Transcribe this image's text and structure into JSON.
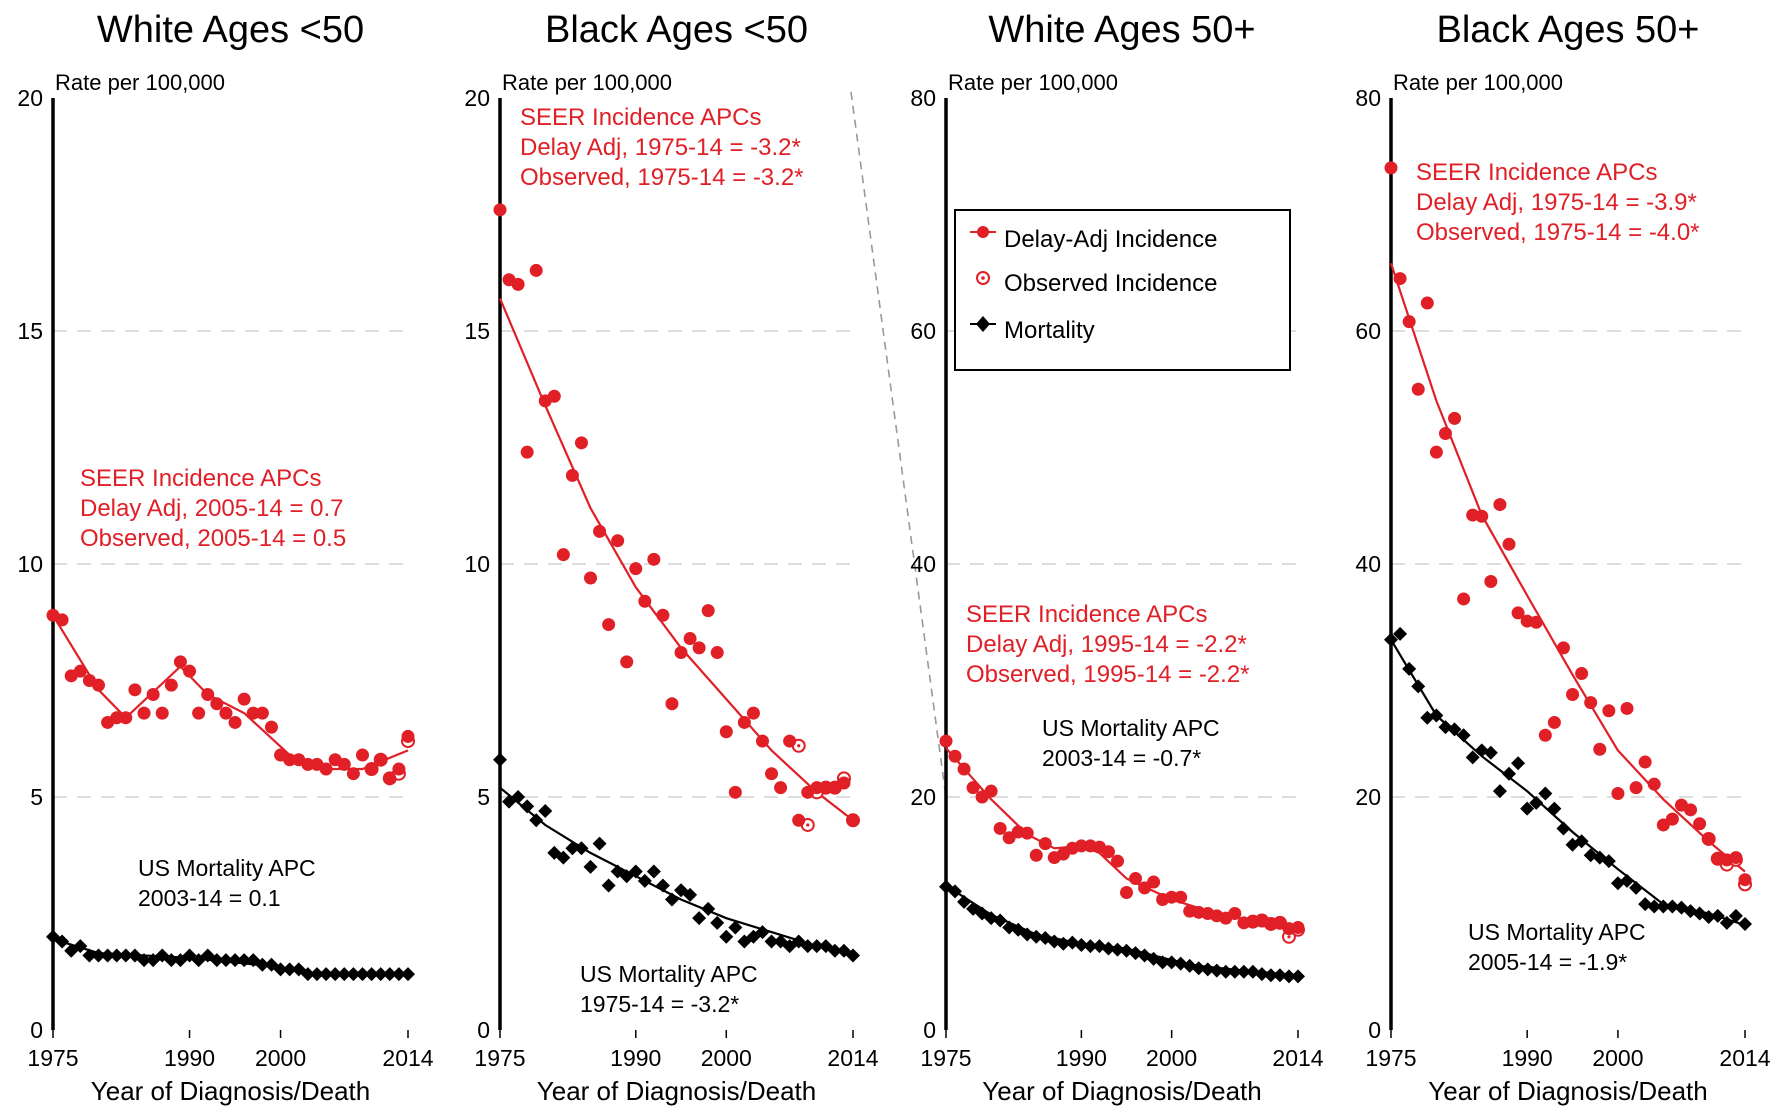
{
  "colors": {
    "incidence": "#e01f26",
    "mortality": "#000000",
    "grid": "#dddddd",
    "connector": "#999999"
  },
  "legend": {
    "delay": "Delay-Adj Incidence",
    "observed": "Observed Incidence",
    "mortality": "Mortality"
  },
  "xlabel": "Year of Diagnosis/Death",
  "ylabel": "Rate per 100,000",
  "chart_data": [
    {
      "type": "scatter",
      "title": "White Ages <50",
      "ylim": [
        0,
        20
      ],
      "yticks": [
        "0",
        "5",
        "10",
        "15",
        "20"
      ],
      "xticks": [
        "1975",
        "1990",
        "2000",
        "2014"
      ],
      "grid": true,
      "series": [
        {
          "name": "Delay-Adj Incidence",
          "x": [
            1975,
            1976,
            1977,
            1978,
            1979,
            1980,
            1981,
            1982,
            1983,
            1984,
            1985,
            1986,
            1987,
            1988,
            1989,
            1990,
            1991,
            1992,
            1993,
            1994,
            1995,
            1996,
            1997,
            1998,
            1999,
            2000,
            2001,
            2002,
            2003,
            2004,
            2005,
            2006,
            2007,
            2008,
            2009,
            2010,
            2011,
            2012,
            2013,
            2014
          ],
          "y": [
            8.9,
            8.8,
            7.6,
            7.7,
            7.5,
            7.4,
            6.6,
            6.7,
            6.7,
            7.3,
            6.8,
            7.2,
            6.8,
            7.4,
            7.9,
            7.7,
            6.8,
            7.2,
            7.0,
            6.8,
            6.6,
            7.1,
            6.8,
            6.8,
            6.5,
            5.9,
            5.8,
            5.8,
            5.7,
            5.7,
            5.6,
            5.8,
            5.7,
            5.5,
            5.9,
            5.6,
            5.8,
            5.4,
            5.6,
            6.3
          ]
        },
        {
          "name": "Observed Incidence",
          "x": [
            2010,
            2011,
            2012,
            2013,
            2014
          ],
          "y": [
            5.6,
            5.8,
            5.4,
            5.5,
            6.2
          ]
        },
        {
          "name": "Delay-Adj Incidence trend",
          "x": [
            1975,
            1980,
            1983,
            1989,
            1992,
            1996,
            2001,
            2005,
            2009,
            2014
          ],
          "y": [
            8.9,
            7.3,
            6.7,
            7.8,
            7.2,
            6.8,
            5.9,
            5.6,
            5.6,
            6.0
          ]
        },
        {
          "name": "Mortality",
          "x": [
            1975,
            1976,
            1977,
            1978,
            1979,
            1980,
            1981,
            1982,
            1983,
            1984,
            1985,
            1986,
            1987,
            1988,
            1989,
            1990,
            1991,
            1992,
            1993,
            1994,
            1995,
            1996,
            1997,
            1998,
            1999,
            2000,
            2001,
            2002,
            2003,
            2004,
            2005,
            2006,
            2007,
            2008,
            2009,
            2010,
            2011,
            2012,
            2013,
            2014
          ],
          "y": [
            2.0,
            1.9,
            1.7,
            1.8,
            1.6,
            1.6,
            1.6,
            1.6,
            1.6,
            1.6,
            1.5,
            1.5,
            1.6,
            1.5,
            1.5,
            1.6,
            1.5,
            1.6,
            1.5,
            1.5,
            1.5,
            1.5,
            1.5,
            1.4,
            1.4,
            1.3,
            1.3,
            1.3,
            1.2,
            1.2,
            1.2,
            1.2,
            1.2,
            1.2,
            1.2,
            1.2,
            1.2,
            1.2,
            1.2,
            1.2
          ]
        },
        {
          "name": "Mortality trend",
          "x": [
            1975,
            1980,
            1990,
            2000,
            2003,
            2014
          ],
          "y": [
            1.95,
            1.65,
            1.55,
            1.35,
            1.2,
            1.2
          ]
        }
      ],
      "annotations": {
        "incidence": [
          "SEER Incidence APCs",
          "Delay Adj, 2005-14 = 0.7",
          "Observed, 2005-14 = 0.5"
        ],
        "mortality": [
          "US Mortality APC",
          "2003-14 = 0.1"
        ]
      }
    },
    {
      "type": "scatter",
      "title": "Black Ages <50",
      "ylim": [
        0,
        20
      ],
      "yticks": [
        "0",
        "5",
        "10",
        "15",
        "20"
      ],
      "xticks": [
        "1975",
        "1990",
        "2000",
        "2014"
      ],
      "grid": true,
      "series": [
        {
          "name": "Delay-Adj Incidence",
          "x": [
            1975,
            1976,
            1977,
            1978,
            1979,
            1980,
            1981,
            1982,
            1983,
            1984,
            1985,
            1986,
            1987,
            1988,
            1989,
            1990,
            1991,
            1992,
            1993,
            1994,
            1995,
            1996,
            1997,
            1998,
            1999,
            2000,
            2001,
            2002,
            2003,
            2004,
            2005,
            2006,
            2007,
            2008,
            2009,
            2010,
            2011,
            2012,
            2013,
            2014
          ],
          "y": [
            17.6,
            16.1,
            16.0,
            12.4,
            16.3,
            13.5,
            13.6,
            10.2,
            11.9,
            12.6,
            9.7,
            10.7,
            8.7,
            10.5,
            7.9,
            9.9,
            9.2,
            10.1,
            8.9,
            7.0,
            8.1,
            8.4,
            8.2,
            9.0,
            8.1,
            6.4,
            5.1,
            6.6,
            6.8,
            6.2,
            5.5,
            5.2,
            6.2,
            4.5,
            5.1,
            5.2,
            5.2,
            5.2,
            5.3,
            4.5
          ]
        },
        {
          "name": "Observed Incidence",
          "x": [
            2008,
            2009,
            2010,
            2011,
            2012,
            2013,
            2014
          ],
          "y": [
            6.1,
            4.4,
            5.1,
            5.2,
            5.2,
            5.4,
            4.5
          ]
        },
        {
          "name": "Delay-Adj Incidence trend",
          "x": [
            1975,
            1980,
            1985,
            1990,
            1995,
            2000,
            2005,
            2010,
            2014
          ],
          "y": [
            15.7,
            13.4,
            11.2,
            9.5,
            8.2,
            7.1,
            6.0,
            5.1,
            4.5
          ]
        },
        {
          "name": "Mortality",
          "x": [
            1975,
            1976,
            1977,
            1978,
            1979,
            1980,
            1981,
            1982,
            1983,
            1984,
            1985,
            1986,
            1987,
            1988,
            1989,
            1990,
            1991,
            1992,
            1993,
            1994,
            1995,
            1996,
            1997,
            1998,
            1999,
            2000,
            2001,
            2002,
            2003,
            2004,
            2005,
            2006,
            2007,
            2008,
            2009,
            2010,
            2011,
            2012,
            2013,
            2014
          ],
          "y": [
            5.8,
            4.9,
            5.0,
            4.8,
            4.5,
            4.7,
            3.8,
            3.7,
            3.9,
            3.9,
            3.5,
            4.0,
            3.1,
            3.4,
            3.3,
            3.4,
            3.2,
            3.4,
            3.1,
            2.8,
            3.0,
            2.9,
            2.4,
            2.6,
            2.3,
            2.0,
            2.2,
            1.9,
            2.0,
            2.1,
            1.9,
            1.9,
            1.8,
            1.9,
            1.8,
            1.8,
            1.8,
            1.7,
            1.7,
            1.6
          ]
        },
        {
          "name": "Mortality trend",
          "x": [
            1975,
            1980,
            1985,
            1990,
            1995,
            2000,
            2005,
            2010,
            2014
          ],
          "y": [
            5.2,
            4.4,
            3.8,
            3.3,
            2.8,
            2.4,
            2.1,
            1.8,
            1.6
          ]
        }
      ],
      "annotations": {
        "incidence": [
          "SEER Incidence APCs",
          "Delay Adj, 1975-14 = -3.2*",
          "Observed, 1975-14 = -3.2*"
        ],
        "mortality": [
          "US Mortality APC",
          "1975-14 = -3.2*"
        ]
      }
    },
    {
      "type": "scatter",
      "title": "White Ages 50+",
      "ylim": [
        0,
        80
      ],
      "yticks": [
        "0",
        "20",
        "40",
        "60",
        "80"
      ],
      "xticks": [
        "1975",
        "1990",
        "2000",
        "2014"
      ],
      "grid": true,
      "series": [
        {
          "name": "Delay-Adj Incidence",
          "x": [
            1975,
            1976,
            1977,
            1978,
            1979,
            1980,
            1981,
            1982,
            1983,
            1984,
            1985,
            1986,
            1987,
            1988,
            1989,
            1990,
            1991,
            1992,
            1993,
            1994,
            1995,
            1996,
            1997,
            1998,
            1999,
            2000,
            2001,
            2002,
            2003,
            2004,
            2005,
            2006,
            2007,
            2008,
            2009,
            2010,
            2011,
            2012,
            2013,
            2014
          ],
          "y": [
            24.8,
            23.5,
            22.4,
            20.8,
            20.0,
            20.5,
            17.3,
            16.5,
            17.0,
            16.9,
            15.0,
            16.0,
            14.8,
            15.1,
            15.6,
            15.8,
            15.8,
            15.7,
            15.3,
            14.5,
            11.8,
            13.0,
            12.2,
            12.7,
            11.2,
            11.4,
            11.4,
            10.2,
            10.1,
            10.0,
            9.8,
            9.6,
            10.0,
            9.2,
            9.3,
            9.4,
            9.1,
            9.2,
            8.7,
            8.8
          ]
        },
        {
          "name": "Observed Incidence",
          "x": [
            2009,
            2010,
            2011,
            2012,
            2013,
            2014
          ],
          "y": [
            9.3,
            9.4,
            9.1,
            9.2,
            8.0,
            8.6
          ]
        },
        {
          "name": "Delay-Adj Incidence trend",
          "x": [
            1975,
            1980,
            1984,
            1987,
            1990,
            1992,
            1995,
            2000,
            2005,
            2010,
            2014
          ],
          "y": [
            24.2,
            19.8,
            16.8,
            15.6,
            15.8,
            15.2,
            13.0,
            11.2,
            10.0,
            9.2,
            8.6
          ]
        },
        {
          "name": "Mortality",
          "x": [
            1975,
            1976,
            1977,
            1978,
            1979,
            1980,
            1981,
            1982,
            1983,
            1984,
            1985,
            1986,
            1987,
            1988,
            1989,
            1990,
            1991,
            1992,
            1993,
            1994,
            1995,
            1996,
            1997,
            1998,
            1999,
            2000,
            2001,
            2002,
            2003,
            2004,
            2005,
            2006,
            2007,
            2008,
            2009,
            2010,
            2011,
            2012,
            2013,
            2014
          ],
          "y": [
            12.3,
            11.9,
            11.0,
            10.4,
            10.0,
            9.6,
            9.4,
            8.8,
            8.6,
            8.2,
            8.0,
            7.9,
            7.6,
            7.4,
            7.5,
            7.3,
            7.2,
            7.2,
            7.0,
            6.9,
            6.8,
            6.6,
            6.4,
            6.1,
            5.8,
            5.8,
            5.7,
            5.5,
            5.3,
            5.2,
            5.1,
            5.0,
            5.0,
            5.0,
            5.0,
            4.8,
            4.7,
            4.7,
            4.6,
            4.6
          ]
        },
        {
          "name": "Mortality trend",
          "x": [
            1975,
            1980,
            1985,
            1990,
            1995,
            2000,
            2003,
            2008,
            2014
          ],
          "y": [
            12.4,
            9.9,
            8.2,
            7.4,
            7.0,
            6.0,
            5.5,
            5.1,
            4.7
          ]
        }
      ],
      "annotations": {
        "incidence": [
          "SEER Incidence APCs",
          "Delay Adj, 1995-14 = -2.2*",
          "Observed, 1995-14 = -2.2*"
        ],
        "mortality": [
          "US Mortality APC",
          "2003-14 = -0.7*"
        ]
      }
    },
    {
      "type": "scatter",
      "title": "Black Ages 50+",
      "ylim": [
        0,
        80
      ],
      "yticks": [
        "0",
        "20",
        "40",
        "60",
        "80"
      ],
      "xticks": [
        "1975",
        "1990",
        "2000",
        "2014"
      ],
      "grid": true,
      "series": [
        {
          "name": "Delay-Adj Incidence",
          "x": [
            1975,
            1976,
            1977,
            1978,
            1979,
            1980,
            1981,
            1982,
            1983,
            1984,
            1985,
            1986,
            1987,
            1988,
            1989,
            1990,
            1991,
            1992,
            1993,
            1994,
            1995,
            1996,
            1997,
            1998,
            1999,
            2000,
            2001,
            2002,
            2003,
            2004,
            2005,
            2006,
            2007,
            2008,
            2009,
            2010,
            2011,
            2012,
            2013,
            2014
          ],
          "y": [
            74.0,
            64.5,
            60.8,
            55.0,
            62.4,
            49.6,
            51.2,
            52.5,
            37.0,
            44.2,
            44.1,
            38.5,
            45.1,
            41.7,
            35.8,
            35.1,
            35.0,
            25.3,
            26.4,
            32.8,
            28.8,
            30.6,
            28.1,
            24.1,
            27.4,
            20.3,
            27.6,
            20.8,
            23.0,
            21.1,
            17.6,
            18.1,
            19.3,
            18.9,
            17.7,
            16.4,
            14.7,
            14.6,
            14.8,
            12.9
          ]
        },
        {
          "name": "Observed Incidence",
          "x": [
            2010,
            2011,
            2012,
            2013,
            2014
          ],
          "y": [
            16.4,
            14.7,
            14.2,
            14.6,
            12.5
          ]
        },
        {
          "name": "Delay-Adj Incidence trend",
          "x": [
            1975,
            1980,
            1985,
            1990,
            1995,
            2000,
            2005,
            2010,
            2014
          ],
          "y": [
            65.8,
            54.0,
            44.2,
            37.3,
            30.5,
            24.0,
            19.8,
            16.2,
            13.6
          ]
        },
        {
          "name": "Mortality",
          "x": [
            1975,
            1976,
            1977,
            1978,
            1979,
            1980,
            1981,
            1982,
            1983,
            1984,
            1985,
            1986,
            1987,
            1988,
            1989,
            1990,
            1991,
            1992,
            1993,
            1994,
            1995,
            1996,
            1997,
            1998,
            1999,
            2000,
            2001,
            2002,
            2003,
            2004,
            2005,
            2006,
            2007,
            2008,
            2009,
            2010,
            2011,
            2012,
            2013,
            2014
          ],
          "y": [
            33.5,
            34.0,
            31.0,
            29.5,
            26.8,
            27.0,
            26.0,
            25.8,
            25.3,
            23.4,
            24.0,
            23.8,
            20.5,
            22.0,
            22.9,
            19.0,
            19.5,
            20.3,
            19.0,
            17.3,
            15.9,
            16.2,
            15.0,
            14.8,
            14.5,
            12.6,
            12.8,
            12.2,
            10.8,
            10.6,
            10.6,
            10.6,
            10.5,
            10.2,
            10.0,
            9.7,
            9.8,
            9.2,
            9.8,
            9.1
          ]
        },
        {
          "name": "Mortality trend",
          "x": [
            1975,
            1980,
            1985,
            1990,
            1995,
            2000,
            2005,
            2010,
            2014
          ],
          "y": [
            33.5,
            27.0,
            23.5,
            20.5,
            17.0,
            13.8,
            10.8,
            10.0,
            9.0
          ]
        }
      ],
      "annotations": {
        "incidence": [
          "SEER Incidence APCs",
          "Delay Adj, 1975-14 = -3.9*",
          "Observed, 1975-14 = -4.0*"
        ],
        "mortality": [
          "US Mortality APC",
          "2005-14 = -1.9*"
        ]
      }
    }
  ]
}
